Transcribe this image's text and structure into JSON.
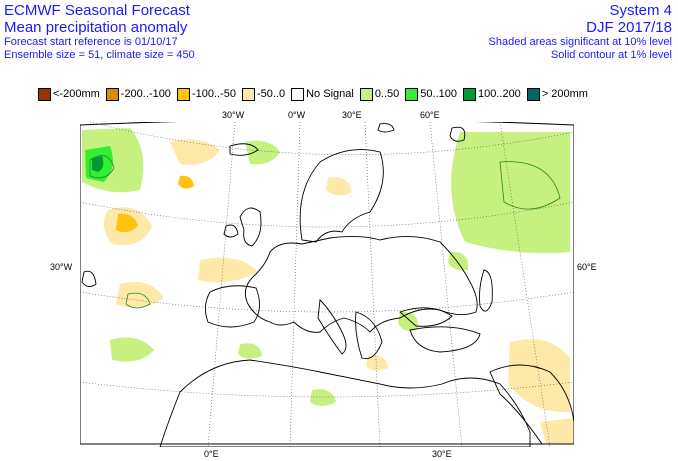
{
  "header": {
    "left_title": "ECMWF Seasonal Forecast",
    "left_subtitle": "Mean precipitation anomaly",
    "left_line3": "Forecast start reference is 01/10/17",
    "left_line4": "Ensemble size = 51, climate size = 450",
    "right_title": "System 4",
    "right_subtitle": "DJF 2017/18",
    "right_line3": "Shaded areas significant at 10% level",
    "right_line4": "Solid contour at 1% level"
  },
  "legend": {
    "items": [
      {
        "label": "<-200mm",
        "color": "#993300"
      },
      {
        "label": "-200..-100",
        "color": "#d98c00"
      },
      {
        "label": "-100..-50",
        "color": "#ffc20e"
      },
      {
        "label": "-50..0",
        "color": "#ffe9a8"
      },
      {
        "label": "No Signal",
        "color": "#ffffff"
      },
      {
        "label": "0..50",
        "color": "#c6f080"
      },
      {
        "label": "50..100",
        "color": "#33ee33"
      },
      {
        "label": "100..200",
        "color": "#009933"
      },
      {
        "label": "> 200mm",
        "color": "#006666"
      }
    ]
  },
  "map": {
    "lon_labels": {
      "top": [
        "30°W",
        "0°W",
        "30°E",
        "60°E"
      ],
      "bottom": [
        "0°E",
        "30°E"
      ]
    },
    "lat_labels": {
      "left": "30°W",
      "right": "60°E"
    }
  }
}
